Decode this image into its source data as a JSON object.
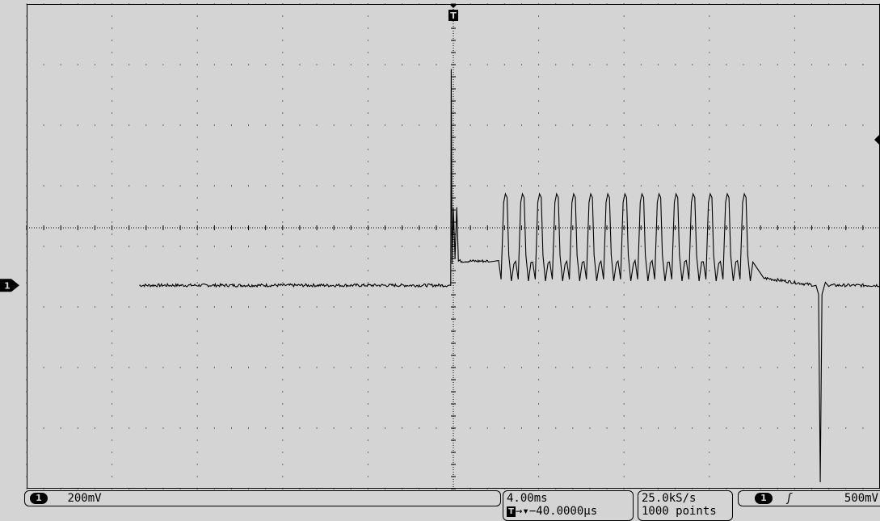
{
  "channel": {
    "number": "1",
    "scale": "200mV"
  },
  "timebase": {
    "scale": "4.00ms",
    "trigger_position_symbol": "→▾",
    "trigger_position": "−40.0000µs"
  },
  "acquisition": {
    "sample_rate": "25.0kS/s",
    "record_length": "1000 points"
  },
  "trigger": {
    "source": "1",
    "slope_symbol": "ʃ",
    "level": "500mV",
    "marker_label": "T"
  },
  "markers": {
    "ground_label": "1"
  },
  "colors": {
    "screen_background": "#d4d4d4",
    "graticule": "#000000",
    "trace": "#000000"
  },
  "chart_data": {
    "type": "line",
    "title": "",
    "xlabel": "",
    "ylabel": "",
    "x_divisions": 10,
    "y_divisions": 8,
    "x_range_div": [
      -5,
      5
    ],
    "y_range_div": [
      -4,
      4
    ],
    "series": [
      {
        "values": [
          {
            "t": -3.68,
            "v": -0.95
          },
          {
            "t": -0.04,
            "v": -0.95
          },
          {
            "t": -0.02,
            "v": 2.62
          },
          {
            "t": 0.06,
            "v": -0.45
          },
          {
            "t": 0.4,
            "v": -0.55
          },
          {
            "t": 0.55,
            "v": 0.5
          },
          {
            "t": 3.64,
            "v": 0.5
          },
          {
            "t": 3.8,
            "v": -0.75
          },
          {
            "t": 4.2,
            "v": -0.95
          },
          {
            "t": 4.31,
            "v": -4.2
          },
          {
            "t": 5.0,
            "v": -0.95
          }
        ]
      }
    ],
    "grid": true
  }
}
